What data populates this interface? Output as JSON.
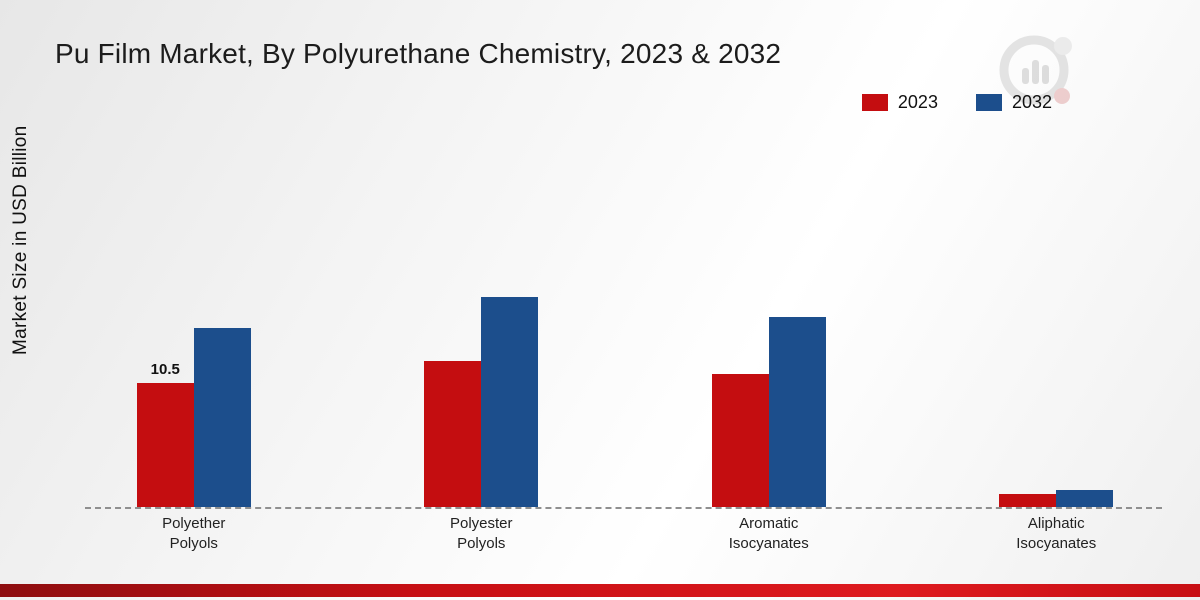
{
  "title": "Pu Film Market, By Polyurethane Chemistry, 2023 & 2032",
  "ylabel": "Market Size in USD Billion",
  "legend": [
    {
      "label": "2023",
      "color": "#c40d10"
    },
    {
      "label": "2032",
      "color": "#1c4e8c"
    }
  ],
  "colors": {
    "series_2023": "#c40d10",
    "series_2032": "#1c4e8c",
    "baseline": "#8f8f8f",
    "footer": "#c70f14"
  },
  "chart_data": {
    "type": "bar",
    "title": "Pu Film Market, By Polyurethane Chemistry, 2023 & 2032",
    "xlabel": "",
    "ylabel": "Market Size in USD Billion",
    "categories": [
      "Polyether Polyols",
      "Polyester Polyols",
      "Aromatic Isocyanates",
      "Aliphatic Isocyanates"
    ],
    "category_lines": [
      [
        "Polyether",
        "Polyols"
      ],
      [
        "Polyester",
        "Polyols"
      ],
      [
        "Aromatic",
        "Isocyanates"
      ],
      [
        "Aliphatic",
        "Isocyanates"
      ]
    ],
    "series": [
      {
        "name": "2023",
        "color": "#c40d10",
        "values": [
          10.5,
          12.4,
          11.3,
          1.1
        ]
      },
      {
        "name": "2032",
        "color": "#1c4e8c",
        "values": [
          15.2,
          17.8,
          16.1,
          1.4
        ]
      }
    ],
    "data_labels": [
      {
        "category_index": 0,
        "series_index": 0,
        "text": "10.5"
      }
    ],
    "ylim": [
      0,
      20
    ],
    "grid": false,
    "baseline_style": "dashed",
    "legend_position": "top-right"
  }
}
